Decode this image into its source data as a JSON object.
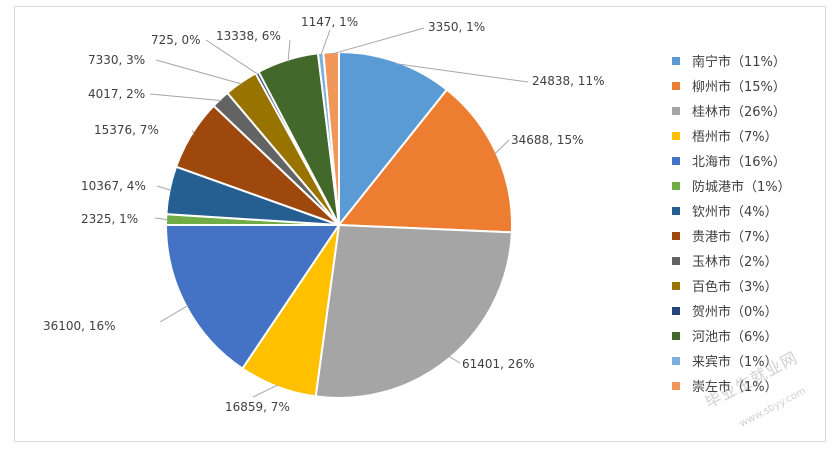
{
  "chart_data": {
    "type": "pie",
    "title": "",
    "legend_position": "right",
    "slices": [
      {
        "name": "南宁市",
        "value": 24838,
        "pct": "11%",
        "color": "#5b9bd5",
        "legend_label": "南宁市（11%）",
        "data_label": "24838, 11%"
      },
      {
        "name": "柳州市",
        "value": 34688,
        "pct": "15%",
        "color": "#ed7d31",
        "legend_label": "柳州市（15%）",
        "data_label": "34688, 15%"
      },
      {
        "name": "桂林市",
        "value": 61401,
        "pct": "26%",
        "color": "#a5a5a5",
        "legend_label": "桂林市（26%）",
        "data_label": "61401, 26%"
      },
      {
        "name": "梧州市",
        "value": 16859,
        "pct": "7%",
        "color": "#ffc000",
        "legend_label": "梧州市（7%）",
        "data_label": "16859, 7%"
      },
      {
        "name": "北海市",
        "value": 36100,
        "pct": "16%",
        "color": "#4472c4",
        "legend_label": "北海市（16%）",
        "data_label": "36100, 16%"
      },
      {
        "name": "防城港市",
        "value": 2325,
        "pct": "1%",
        "color": "#70ad47",
        "legend_label": "防城港市（1%）",
        "data_label": "2325, 1%"
      },
      {
        "name": "钦州市",
        "value": 10367,
        "pct": "4%",
        "color": "#255e91",
        "legend_label": "钦州市（4%）",
        "data_label": "10367, 4%"
      },
      {
        "name": "贵港市",
        "value": 15376,
        "pct": "7%",
        "color": "#9e480e",
        "legend_label": "贵港市（7%）",
        "data_label": "15376, 7%"
      },
      {
        "name": "玉林市",
        "value": 4017,
        "pct": "2%",
        "color": "#636363",
        "legend_label": "玉林市（2%）",
        "data_label": "4017, 2%"
      },
      {
        "name": "百色市",
        "value": 7330,
        "pct": "3%",
        "color": "#997300",
        "legend_label": "百色市（3%）",
        "data_label": "7330, 3%"
      },
      {
        "name": "贺州市",
        "value": 725,
        "pct": "0%",
        "color": "#264478",
        "legend_label": "贺州市（0%）",
        "data_label": "725, 0%"
      },
      {
        "name": "河池市",
        "value": 13338,
        "pct": "6%",
        "color": "#43682b",
        "legend_label": "河池市（6%）",
        "data_label": "13338, 6%"
      },
      {
        "name": "来宾市",
        "value": 1147,
        "pct": "1%",
        "color": "#7cafdd",
        "legend_label": "来宾市（1%）",
        "data_label": "1147, 1%"
      },
      {
        "name": "崇左市",
        "value": 3350,
        "pct": "1%",
        "color": "#f1975a",
        "legend_label": "崇左市（1%）",
        "data_label": "3350, 1%"
      }
    ]
  },
  "watermark": {
    "text": "毕业生就业网",
    "sub": "www.sbyy.com"
  }
}
